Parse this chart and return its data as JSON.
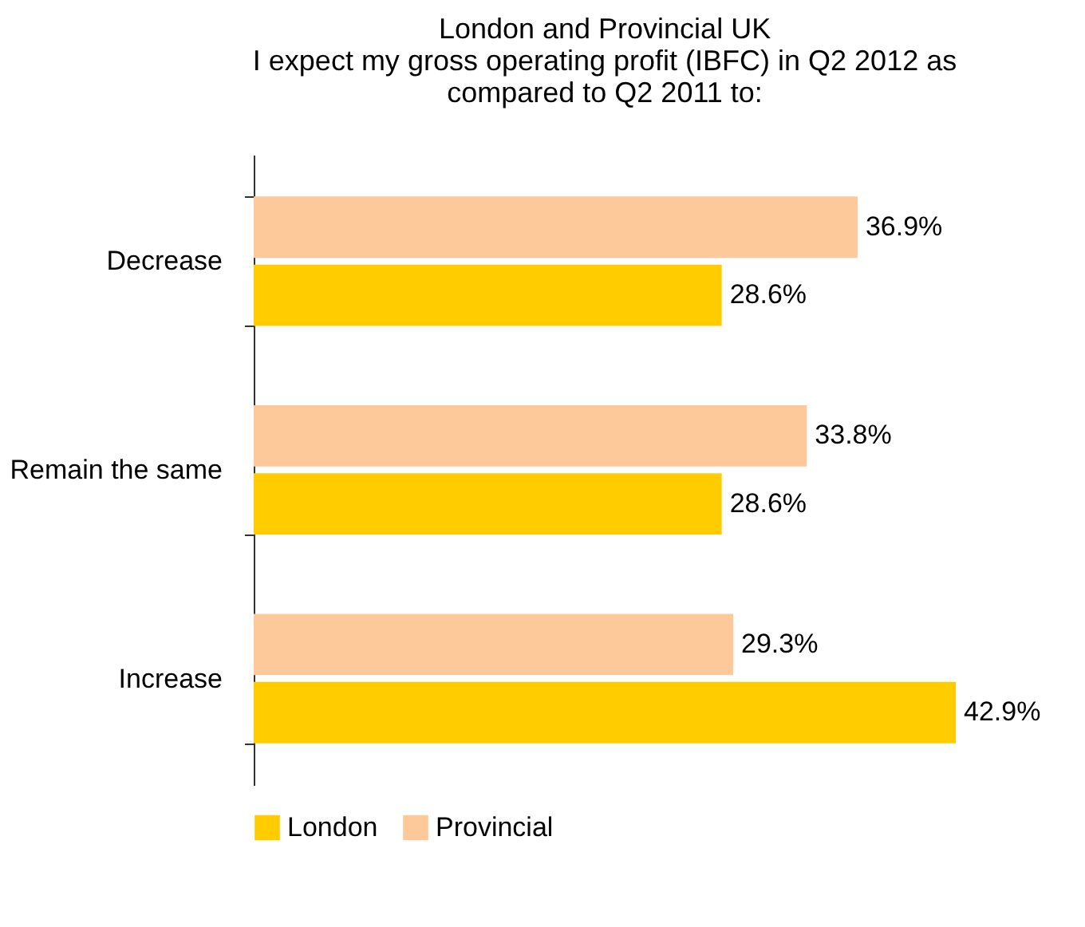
{
  "chart_data": {
    "type": "bar",
    "orientation": "horizontal",
    "title": "London and Provincial UK\nI expect my gross operating profit (IBFC) in Q2 2012 as\ncompared to Q2 2011 to:",
    "categories": [
      "Decrease",
      "Remain the same",
      "Increase"
    ],
    "series": [
      {
        "name": "London",
        "color": "#ffcc00",
        "values": [
          28.6,
          28.6,
          42.9
        ],
        "value_labels": [
          "28.6%",
          "28.6%",
          "42.9%"
        ]
      },
      {
        "name": "Provincial",
        "color": "#fdc99a",
        "values": [
          36.9,
          33.8,
          29.3
        ],
        "value_labels": [
          "36.9%",
          "33.8%",
          "29.3%"
        ]
      }
    ],
    "legend": "bottom left"
  }
}
